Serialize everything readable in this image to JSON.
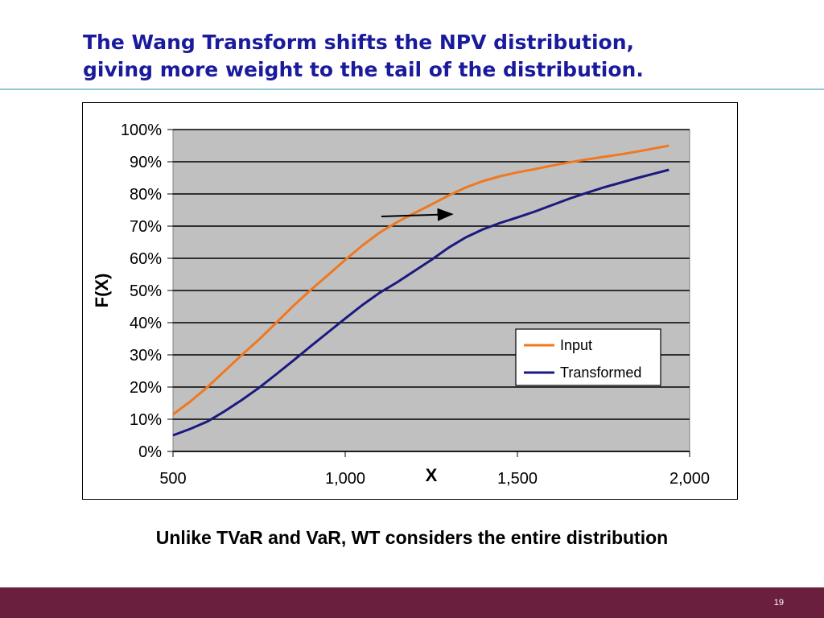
{
  "slide": {
    "title_line1": "The Wang Transform shifts the NPV distribution,",
    "title_line2": "giving more weight to the tail of the distribution.",
    "subtitle": "Unlike TVaR and VaR, WT considers the entire distribution",
    "page_number": "19"
  },
  "colors": {
    "title": "#1a1a9c",
    "plot_background": "#c0c0c0",
    "footer": "#6b1f3f",
    "rule": "#8fc6d8"
  },
  "chart_data": {
    "type": "line",
    "xlabel": "X",
    "ylabel": "F(X)",
    "xlim": [
      500,
      2000
    ],
    "ylim": [
      0,
      1
    ],
    "x_ticks": [
      500,
      1000,
      1500,
      2000
    ],
    "x_tick_labels": [
      "500",
      "1,000",
      "1,500",
      "2,000"
    ],
    "y_ticks": [
      0,
      0.1,
      0.2,
      0.3,
      0.4,
      0.5,
      0.6,
      0.7,
      0.8,
      0.9,
      1.0
    ],
    "y_tick_labels": [
      "0%",
      "10%",
      "20%",
      "30%",
      "40%",
      "50%",
      "60%",
      "70%",
      "80%",
      "90%",
      "100%"
    ],
    "grid": "horizontal",
    "legend_position": "lower-right",
    "series": [
      {
        "name": "Input",
        "color": "#f07820",
        "x": [
          500,
          550,
          600,
          650,
          700,
          750,
          800,
          850,
          900,
          950,
          1000,
          1050,
          1100,
          1150,
          1200,
          1250,
          1300,
          1350,
          1400,
          1450,
          1500,
          1550,
          1600,
          1650,
          1700,
          1750,
          1800,
          1850,
          1900,
          1940
        ],
        "values": [
          0.115,
          0.155,
          0.2,
          0.25,
          0.3,
          0.348,
          0.4,
          0.453,
          0.502,
          0.548,
          0.595,
          0.64,
          0.68,
          0.712,
          0.74,
          0.767,
          0.795,
          0.82,
          0.84,
          0.855,
          0.867,
          0.877,
          0.888,
          0.898,
          0.907,
          0.915,
          0.923,
          0.932,
          0.942,
          0.95
        ]
      },
      {
        "name": "Transformed",
        "color": "#1a1a80",
        "x": [
          500,
          550,
          600,
          650,
          700,
          750,
          800,
          850,
          900,
          950,
          1000,
          1050,
          1100,
          1150,
          1200,
          1250,
          1300,
          1350,
          1400,
          1450,
          1500,
          1550,
          1600,
          1650,
          1700,
          1750,
          1800,
          1850,
          1900,
          1940
        ],
        "values": [
          0.05,
          0.07,
          0.093,
          0.125,
          0.16,
          0.198,
          0.24,
          0.283,
          0.327,
          0.37,
          0.413,
          0.455,
          0.493,
          0.525,
          0.56,
          0.595,
          0.633,
          0.665,
          0.69,
          0.71,
          0.727,
          0.745,
          0.765,
          0.785,
          0.803,
          0.82,
          0.835,
          0.85,
          0.864,
          0.875
        ]
      }
    ],
    "annotations": [
      {
        "type": "arrow",
        "from": [
          1105,
          0.73
        ],
        "to": [
          1310,
          0.737
        ],
        "color": "#000000"
      }
    ]
  }
}
